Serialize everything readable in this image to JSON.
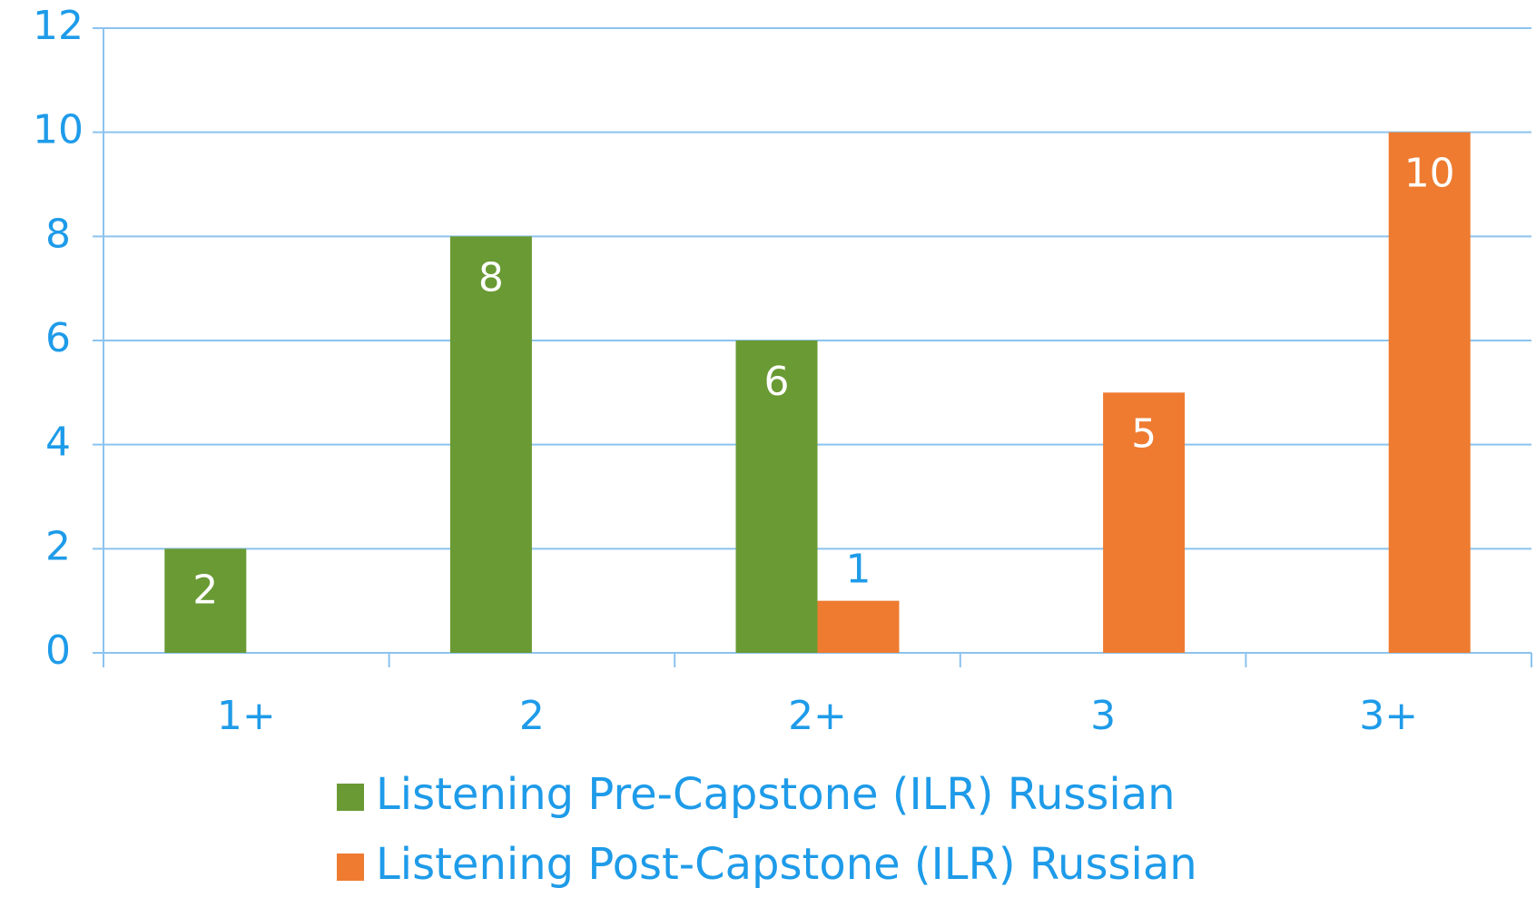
{
  "chart_data": {
    "type": "bar",
    "categories": [
      "1+",
      "2",
      "2+",
      "3",
      "3+"
    ],
    "series": [
      {
        "name": "Listening Pre-Capstone (ILR) Russian",
        "color": "#6a9a34",
        "values": [
          2,
          8,
          6,
          null,
          null
        ]
      },
      {
        "name": "Listening Post-Capstone (ILR) Russian",
        "color": "#ee7b30",
        "values": [
          null,
          null,
          1,
          5,
          10
        ]
      }
    ],
    "ylim": [
      0,
      12
    ],
    "yticks": [
      0,
      2,
      4,
      6,
      8,
      10,
      12
    ],
    "grid": true,
    "legend": "bottom"
  }
}
